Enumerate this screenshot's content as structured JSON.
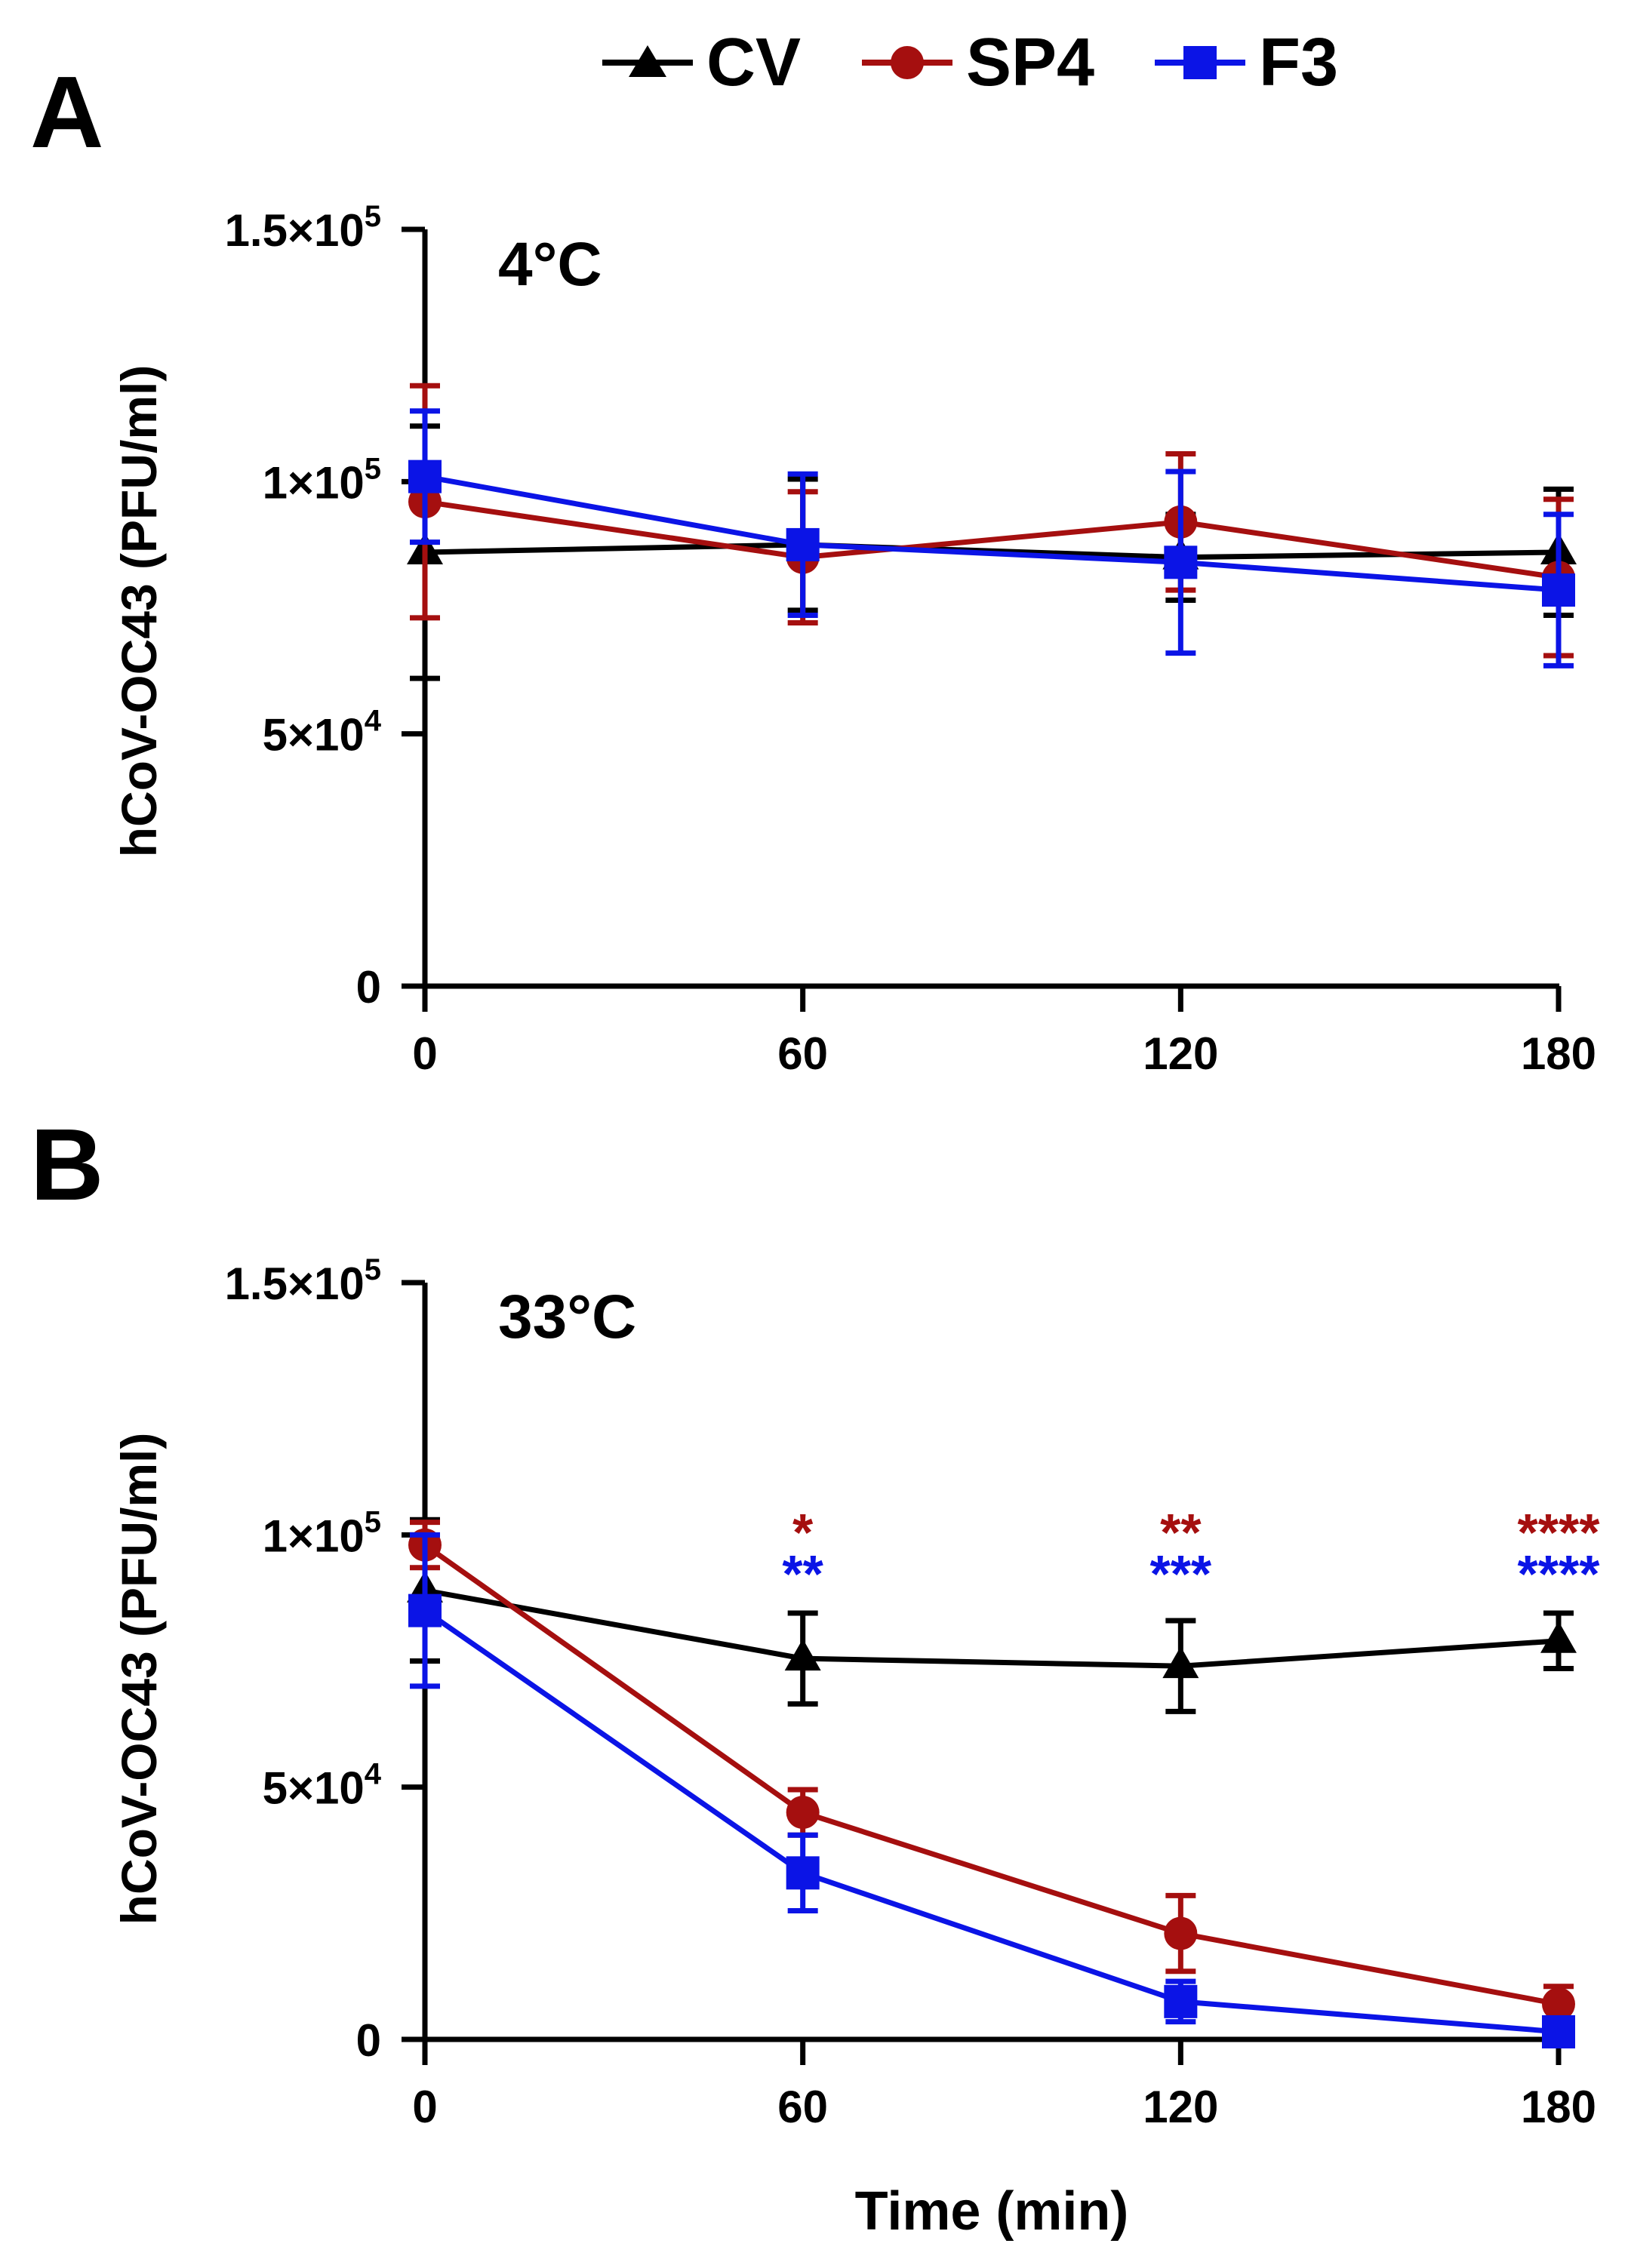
{
  "legend": [
    {
      "name": "CV",
      "color": "#000000",
      "marker": "triangle"
    },
    {
      "name": "SP4",
      "color": "#a50f0f",
      "marker": "circle"
    },
    {
      "name": "F3",
      "color": "#0b14e6",
      "marker": "square"
    }
  ],
  "chart_data": [
    {
      "type": "line",
      "panel": "A",
      "annotation": "4°C",
      "xlabel": "",
      "ylabel": "hCoV-OC43 (PFU/ml)",
      "x": [
        0,
        60,
        120,
        180
      ],
      "x_ticks": [
        "0",
        "60",
        "120",
        "180"
      ],
      "xlim": [
        0,
        180
      ],
      "ylim": [
        0,
        150000
      ],
      "y_ticks": [
        {
          "value": 0,
          "base": "0",
          "exp": ""
        },
        {
          "value": 50000,
          "base": "5×10",
          "exp": "4"
        },
        {
          "value": 100000,
          "base": "1×10",
          "exp": "5"
        },
        {
          "value": 150000,
          "base": "1.5×10",
          "exp": "5"
        }
      ],
      "series": [
        {
          "name": "CV",
          "color": "#000000",
          "marker": "triangle",
          "values": [
            86000,
            87500,
            85000,
            86000
          ],
          "errors": [
            25000,
            13000,
            8500,
            12500
          ]
        },
        {
          "name": "SP4",
          "color": "#a50f0f",
          "marker": "circle",
          "values": [
            96000,
            85000,
            92000,
            81000
          ],
          "errors": [
            23000,
            13000,
            13500,
            15500
          ]
        },
        {
          "name": "F3",
          "color": "#0b14e6",
          "marker": "square",
          "values": [
            101000,
            87500,
            84000,
            78500
          ],
          "errors": [
            13000,
            14000,
            18000,
            15000
          ]
        }
      ],
      "significance": []
    },
    {
      "type": "line",
      "panel": "B",
      "annotation": "33°C",
      "xlabel": "Time (min)",
      "ylabel": "hCoV-OC43 (PFU/ml)",
      "x": [
        0,
        60,
        120,
        180
      ],
      "x_ticks": [
        "0",
        "60",
        "120",
        "180"
      ],
      "xlim": [
        0,
        180
      ],
      "ylim": [
        0,
        150000
      ],
      "y_ticks": [
        {
          "value": 0,
          "base": "0",
          "exp": ""
        },
        {
          "value": 50000,
          "base": "5×10",
          "exp": "4"
        },
        {
          "value": 100000,
          "base": "1×10",
          "exp": "5"
        },
        {
          "value": 150000,
          "base": "1.5×10",
          "exp": "5"
        }
      ],
      "series": [
        {
          "name": "CV",
          "color": "#000000",
          "marker": "triangle",
          "values": [
            89000,
            75500,
            74000,
            79000
          ],
          "errors": [
            14000,
            9000,
            9000,
            5500
          ]
        },
        {
          "name": "SP4",
          "color": "#a50f0f",
          "marker": "circle",
          "values": [
            98000,
            45000,
            21000,
            7000
          ],
          "errors": [
            4500,
            4500,
            7500,
            3500
          ]
        },
        {
          "name": "F3",
          "color": "#0b14e6",
          "marker": "square",
          "values": [
            85000,
            33000,
            7500,
            1500
          ],
          "errors": [
            15000,
            7500,
            4000,
            1500
          ]
        }
      ],
      "significance": [
        {
          "x": 60,
          "SP4": "*",
          "F3": "**"
        },
        {
          "x": 120,
          "SP4": "**",
          "F3": "***"
        },
        {
          "x": 180,
          "SP4": "****",
          "F3": "****"
        }
      ]
    }
  ]
}
